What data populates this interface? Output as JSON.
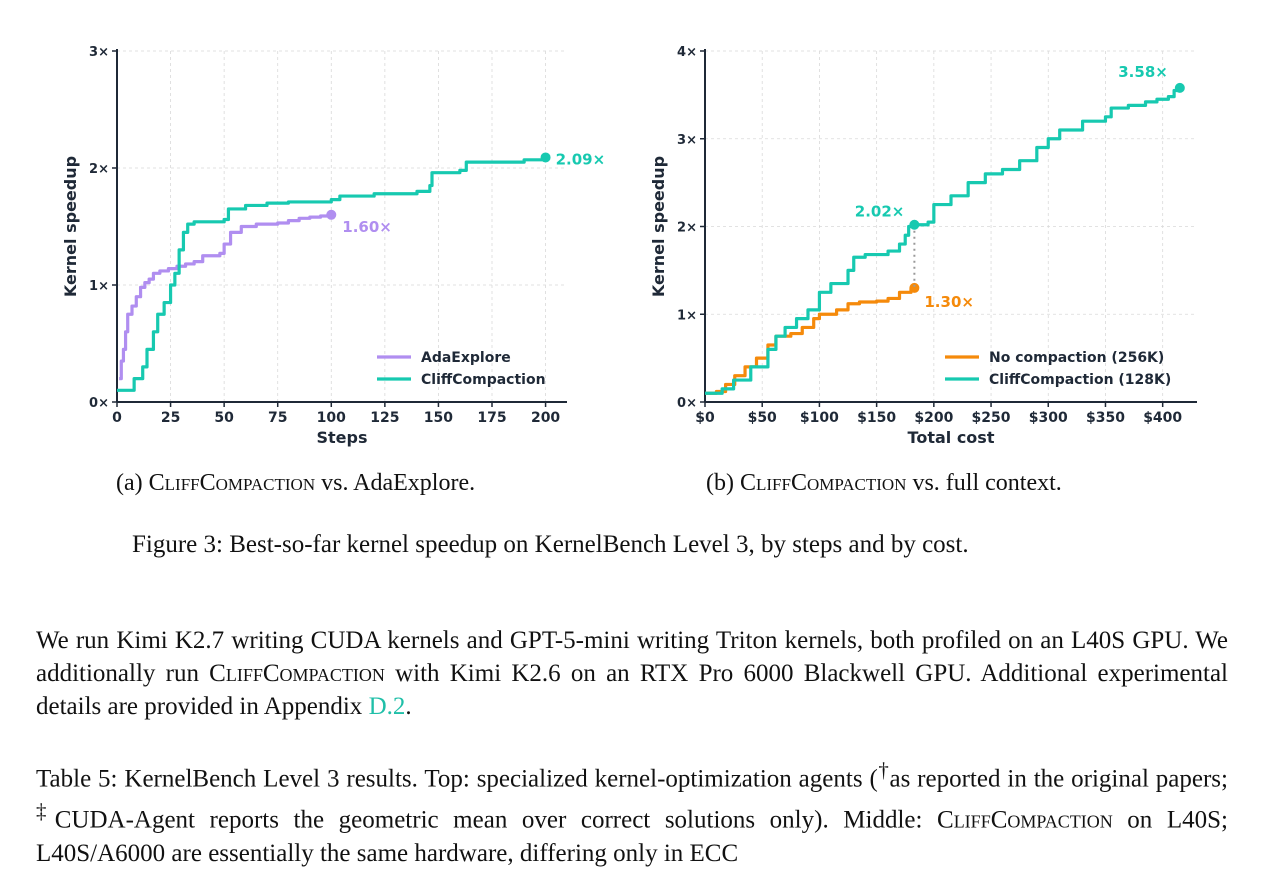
{
  "charts": [
    {
      "id": "a",
      "type": "line",
      "xlabel": "Steps",
      "ylabel": "Kernel speedup",
      "xlim": [
        0,
        210
      ],
      "ylim": [
        0,
        3
      ],
      "xticks": [
        0,
        25,
        50,
        75,
        100,
        125,
        150,
        175,
        200
      ],
      "xtick_labels": [
        "0",
        "25",
        "50",
        "75",
        "100",
        "125",
        "150",
        "175",
        "200"
      ],
      "yticks": [
        0,
        1,
        2,
        3
      ],
      "ytick_labels": [
        "0×",
        "1×",
        "2×",
        "3×"
      ],
      "legend_position": "bottom-right",
      "grid": true,
      "series": [
        {
          "name": "AdaExplore",
          "color": "#b08ef0",
          "end_label": "1.60×",
          "points": [
            [
              1,
              0.2
            ],
            [
              2,
              0.35
            ],
            [
              3,
              0.45
            ],
            [
              4,
              0.6
            ],
            [
              5,
              0.75
            ],
            [
              7,
              0.82
            ],
            [
              9,
              0.9
            ],
            [
              11,
              0.98
            ],
            [
              13,
              1.02
            ],
            [
              15,
              1.05
            ],
            [
              17,
              1.1
            ],
            [
              20,
              1.12
            ],
            [
              24,
              1.14
            ],
            [
              28,
              1.16
            ],
            [
              32,
              1.18
            ],
            [
              36,
              1.2
            ],
            [
              40,
              1.25
            ],
            [
              48,
              1.27
            ],
            [
              50,
              1.35
            ],
            [
              53,
              1.45
            ],
            [
              58,
              1.5
            ],
            [
              65,
              1.52
            ],
            [
              75,
              1.53
            ],
            [
              80,
              1.55
            ],
            [
              85,
              1.57
            ],
            [
              90,
              1.58
            ],
            [
              95,
              1.59
            ],
            [
              100,
              1.6
            ]
          ]
        },
        {
          "name": "CliffCompaction",
          "color": "#17c9b0",
          "end_label": "2.09×",
          "points": [
            [
              0,
              0.1
            ],
            [
              7,
              0.1
            ],
            [
              8,
              0.2
            ],
            [
              12,
              0.3
            ],
            [
              14,
              0.45
            ],
            [
              17,
              0.6
            ],
            [
              19,
              0.75
            ],
            [
              22,
              0.85
            ],
            [
              25,
              1.0
            ],
            [
              27,
              1.1
            ],
            [
              29,
              1.3
            ],
            [
              31,
              1.45
            ],
            [
              33,
              1.52
            ],
            [
              36,
              1.54
            ],
            [
              50,
              1.56
            ],
            [
              52,
              1.65
            ],
            [
              60,
              1.68
            ],
            [
              70,
              1.7
            ],
            [
              80,
              1.71
            ],
            [
              100,
              1.73
            ],
            [
              104,
              1.76
            ],
            [
              120,
              1.78
            ],
            [
              140,
              1.8
            ],
            [
              146,
              1.85
            ],
            [
              147,
              1.96
            ],
            [
              160,
              1.98
            ],
            [
              163,
              2.05
            ],
            [
              190,
              2.07
            ],
            [
              200,
              2.09
            ]
          ]
        }
      ]
    },
    {
      "id": "b",
      "type": "line",
      "xlabel": "Total cost",
      "ylabel": "Kernel speedup",
      "xlim": [
        0,
        430
      ],
      "ylim": [
        0,
        4
      ],
      "xticks": [
        0,
        50,
        100,
        150,
        200,
        250,
        300,
        350,
        400
      ],
      "xtick_labels": [
        "$0",
        "$50",
        "$100",
        "$150",
        "$200",
        "$250",
        "$300",
        "$350",
        "$400"
      ],
      "yticks": [
        0,
        1,
        2,
        3,
        4
      ],
      "ytick_labels": [
        "0×",
        "1×",
        "2×",
        "3×",
        "4×"
      ],
      "legend_position": "bottom-right",
      "grid": true,
      "series": [
        {
          "name": "No compaction (256K)",
          "color": "#f58a0b",
          "end_label": "1.30×",
          "points": [
            [
              0,
              0.1
            ],
            [
              10,
              0.12
            ],
            [
              18,
              0.2
            ],
            [
              26,
              0.3
            ],
            [
              35,
              0.4
            ],
            [
              45,
              0.5
            ],
            [
              55,
              0.65
            ],
            [
              62,
              0.75
            ],
            [
              75,
              0.78
            ],
            [
              85,
              0.85
            ],
            [
              95,
              0.95
            ],
            [
              100,
              1.0
            ],
            [
              115,
              1.05
            ],
            [
              125,
              1.12
            ],
            [
              135,
              1.14
            ],
            [
              150,
              1.15
            ],
            [
              160,
              1.18
            ],
            [
              170,
              1.25
            ],
            [
              180,
              1.29
            ],
            [
              183,
              1.3
            ]
          ]
        },
        {
          "name": "CliffCompaction (128K)",
          "color": "#17c9b0",
          "end_label": "3.58×",
          "mid_label": "2.02×",
          "mid_x": 183,
          "points": [
            [
              0,
              0.1
            ],
            [
              15,
              0.15
            ],
            [
              25,
              0.25
            ],
            [
              40,
              0.4
            ],
            [
              55,
              0.6
            ],
            [
              62,
              0.75
            ],
            [
              70,
              0.85
            ],
            [
              80,
              0.95
            ],
            [
              90,
              1.05
            ],
            [
              100,
              1.25
            ],
            [
              110,
              1.35
            ],
            [
              125,
              1.5
            ],
            [
              130,
              1.65
            ],
            [
              140,
              1.68
            ],
            [
              160,
              1.72
            ],
            [
              170,
              1.8
            ],
            [
              175,
              1.9
            ],
            [
              178,
              2.0
            ],
            [
              183,
              2.02
            ],
            [
              195,
              2.05
            ],
            [
              200,
              2.25
            ],
            [
              215,
              2.35
            ],
            [
              230,
              2.5
            ],
            [
              245,
              2.6
            ],
            [
              260,
              2.65
            ],
            [
              275,
              2.75
            ],
            [
              290,
              2.9
            ],
            [
              300,
              3.0
            ],
            [
              310,
              3.1
            ],
            [
              330,
              3.2
            ],
            [
              350,
              3.25
            ],
            [
              355,
              3.35
            ],
            [
              370,
              3.38
            ],
            [
              385,
              3.42
            ],
            [
              395,
              3.45
            ],
            [
              405,
              3.48
            ],
            [
              410,
              3.55
            ],
            [
              415,
              3.58
            ]
          ]
        }
      ]
    }
  ],
  "captions": {
    "a_prefix": "(a) ",
    "a_name": "CliffCompaction",
    "a_suffix": " vs. AdaExplore.",
    "b_prefix": "(b) ",
    "b_name": "CliffCompaction",
    "b_suffix": " vs. full context.",
    "figure": "Figure 3: Best-so-far kernel speedup on KernelBench Level 3, by steps and by cost."
  },
  "paragraph1": {
    "text1": "We run Kimi K2.7 writing CUDA kernels and GPT-5-mini writing Triton kernels, both profiled on an L40S GPU. We additionally run ",
    "name": "CliffCompaction",
    "text2": " with Kimi K2.6 on an RTX Pro 6000 Blackwell GPU. Additional experimental details are provided in Appendix ",
    "link": "D.2",
    "text3": "."
  },
  "paragraph2": {
    "text1": "Table 5: KernelBench Level 3 results. Top: specialized kernel-optimization agents (",
    "dagger": "†",
    "text2": "as reported in the original papers; ",
    "ddagger": "‡",
    "text3": "CUDA-Agent reports the geometric mean over correct solutions only). Middle: ",
    "name": "CliffCompaction",
    "text4": " on L40S; L40S/A6000 are essentially the same hardware, differing only in ECC"
  }
}
